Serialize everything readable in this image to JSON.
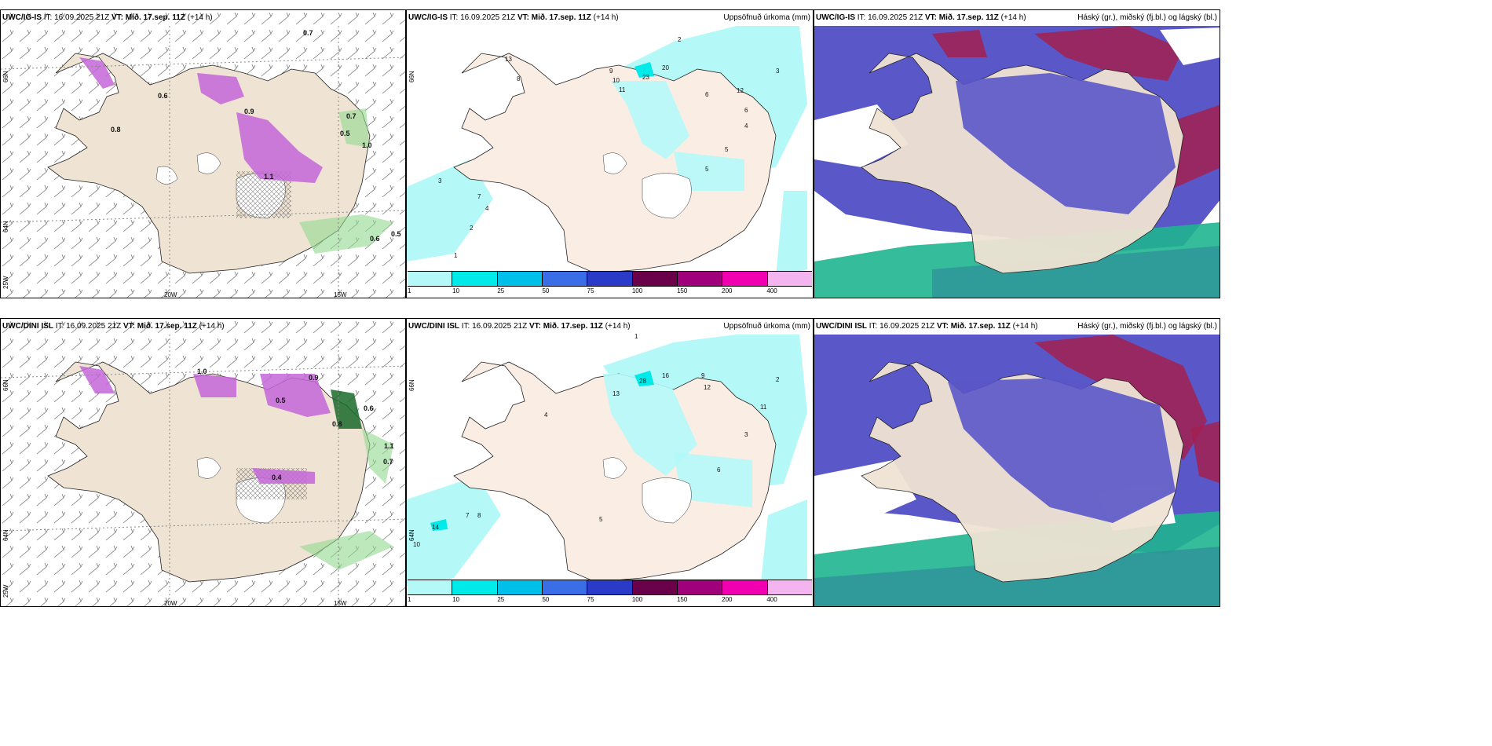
{
  "rows": [
    {
      "model": "UWC/IG-IS",
      "it_prefix": "IT: ",
      "it": "16.09.2025 21Z",
      "vt_prefix": "VT: Mið. 17.sep. 11Z",
      "lead": "(+14 h)"
    },
    {
      "model": "UWC/DINI ISL",
      "it_prefix": "IT: ",
      "it": "16.09.2025 21Z",
      "vt_prefix": "VT: Mið. 17.sep. 11Z",
      "lead": "(+14 h)"
    }
  ],
  "precip_title": "Uppsöfnuð úrkoma (mm)",
  "cloud_title": "Háský (gr.), miðský (fj.bl.) og lágský (bl.)",
  "grid_labels": {
    "lat66": "66N",
    "lat64": "64N",
    "lon25": "25W",
    "lon20": "20W",
    "lon15": "15W"
  },
  "colorbar": {
    "ticks": [
      "1",
      "10",
      "25",
      "50",
      "75",
      "100",
      "150",
      "200",
      "400"
    ],
    "colors": [
      "#b4f8f8",
      "#00eaea",
      "#00bfe8",
      "#3a6ee6",
      "#2a3bc8",
      "#6a004a",
      "#a0007a",
      "#f000b0",
      "#f4b4f0"
    ]
  },
  "panel1_labels": {
    "top": [
      "0.7",
      "0.6",
      "0.5",
      "1.0",
      "0.9",
      "0.7",
      "0.6",
      "0.5",
      "1.1",
      "0.8"
    ],
    "bottom": [
      "1.1",
      "0.7",
      "0.5",
      "0.9",
      "0.6",
      "0.8",
      "1.0",
      "0.4"
    ]
  },
  "panel2_labels": {
    "top": [
      "2",
      "3",
      "4",
      "20",
      "23",
      "9",
      "10",
      "11",
      "6",
      "5",
      "7",
      "12",
      "8",
      "13",
      "1",
      "2",
      "3",
      "4",
      "5",
      "6"
    ],
    "bottom": [
      "1",
      "2",
      "3",
      "28",
      "16",
      "9",
      "12",
      "13",
      "14",
      "10",
      "7",
      "8",
      "5",
      "6",
      "4",
      "11"
    ]
  }
}
